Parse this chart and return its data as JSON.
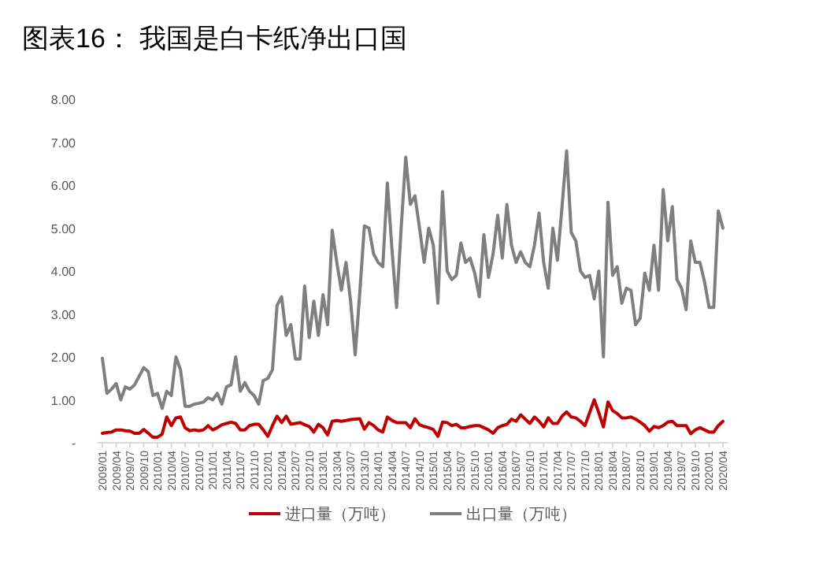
{
  "chart_data": {
    "type": "line",
    "title": "图表16：   我国是白卡纸净出口国",
    "categories": [
      "2009/01",
      null,
      null,
      "2009/04",
      null,
      null,
      "2009/07",
      null,
      null,
      "2009/10",
      null,
      null,
      "2010/01",
      null,
      null,
      "2010/04",
      null,
      null,
      "2010/07",
      null,
      null,
      "2010/10",
      null,
      null,
      "2011/01",
      null,
      null,
      "2011/04",
      null,
      null,
      "2011/07",
      null,
      null,
      "2011/10",
      null,
      null,
      "2012/01",
      null,
      null,
      "2012/04",
      null,
      null,
      "2012/07",
      null,
      null,
      "2012/10",
      null,
      null,
      "2013/01",
      null,
      null,
      "2013/04",
      null,
      null,
      "2013/07",
      null,
      null,
      "2013/10",
      null,
      null,
      "2014/01",
      null,
      null,
      "2014/04",
      null,
      null,
      "2014/07",
      null,
      null,
      "2014/10",
      null,
      null,
      "2015/01",
      null,
      null,
      "2015/04",
      null,
      null,
      "2015/07",
      null,
      null,
      "2015/10",
      null,
      null,
      "2016/01",
      null,
      null,
      "2016/04",
      null,
      null,
      "2016/07",
      null,
      null,
      "2016/10",
      null,
      null,
      "2017/01",
      null,
      null,
      "2017/04",
      null,
      null,
      "2017/07",
      null,
      null,
      "2017/10",
      null,
      null,
      "2018/01",
      null,
      null,
      "2018/04",
      null,
      null,
      "2018/07",
      null,
      null,
      "2018/10",
      null,
      null,
      "2019/01",
      null,
      null,
      "2019/04",
      null,
      null,
      "2019/07",
      null,
      null,
      "2019/10",
      null,
      null,
      "2020/01",
      null,
      null,
      "2020/04"
    ],
    "series": [
      {
        "name": "进口量（万吨）",
        "color": "#c00000",
        "values": [
          0.22,
          0.24,
          0.25,
          0.3,
          0.3,
          0.28,
          0.27,
          0.22,
          0.22,
          0.31,
          0.22,
          0.13,
          0.13,
          0.2,
          0.6,
          0.4,
          0.58,
          0.6,
          0.35,
          0.28,
          0.3,
          0.28,
          0.3,
          0.4,
          0.3,
          0.35,
          0.42,
          0.45,
          0.48,
          0.45,
          0.3,
          0.3,
          0.4,
          0.43,
          0.43,
          0.3,
          0.15,
          0.4,
          0.62,
          0.47,
          0.62,
          0.43,
          0.45,
          0.47,
          0.42,
          0.38,
          0.25,
          0.43,
          0.35,
          0.18,
          0.5,
          0.52,
          0.5,
          0.52,
          0.54,
          0.55,
          0.56,
          0.32,
          0.47,
          0.4,
          0.3,
          0.25,
          0.6,
          0.52,
          0.47,
          0.47,
          0.47,
          0.35,
          0.56,
          0.42,
          0.38,
          0.35,
          0.31,
          0.15,
          0.48,
          0.47,
          0.4,
          0.43,
          0.35,
          0.35,
          0.38,
          0.4,
          0.4,
          0.35,
          0.3,
          0.22,
          0.35,
          0.4,
          0.43,
          0.55,
          0.5,
          0.65,
          0.55,
          0.45,
          0.6,
          0.5,
          0.37,
          0.58,
          0.45,
          0.45,
          0.62,
          0.72,
          0.6,
          0.58,
          0.5,
          0.4,
          0.7,
          1.0,
          0.7,
          0.37,
          0.95,
          0.75,
          0.68,
          0.58,
          0.58,
          0.6,
          0.55,
          0.48,
          0.4,
          0.27,
          0.38,
          0.35,
          0.4,
          0.48,
          0.5,
          0.4,
          0.4,
          0.4,
          0.21,
          0.3,
          0.35,
          0.3,
          0.25,
          0.25,
          0.4,
          0.5
        ]
      },
      {
        "name": "出口量（万吨）",
        "color": "#7f7f7f",
        "values": [
          1.97,
          1.15,
          1.25,
          1.38,
          1.0,
          1.3,
          1.25,
          1.35,
          1.55,
          1.75,
          1.65,
          1.1,
          1.15,
          0.8,
          1.2,
          1.1,
          2.0,
          1.7,
          0.85,
          0.85,
          0.9,
          0.92,
          0.95,
          1.05,
          1.0,
          1.15,
          0.9,
          1.3,
          1.35,
          2.0,
          1.2,
          1.4,
          1.2,
          1.1,
          0.9,
          1.45,
          1.5,
          1.7,
          3.2,
          3.4,
          2.5,
          2.75,
          1.95,
          1.95,
          3.65,
          2.45,
          3.3,
          2.5,
          3.45,
          2.75,
          4.95,
          4.2,
          3.55,
          4.2,
          3.3,
          2.05,
          3.5,
          5.05,
          5.0,
          4.4,
          4.2,
          4.1,
          6.05,
          4.5,
          3.15,
          5.0,
          6.65,
          5.55,
          5.75,
          5.0,
          4.2,
          5.0,
          4.6,
          3.25,
          5.85,
          4.0,
          3.8,
          3.9,
          4.65,
          4.2,
          4.3,
          3.95,
          3.4,
          4.85,
          3.85,
          4.4,
          5.3,
          4.3,
          5.55,
          4.6,
          4.2,
          4.45,
          4.2,
          4.1,
          4.6,
          5.35,
          4.2,
          3.6,
          5.0,
          4.25,
          5.5,
          6.8,
          4.9,
          4.7,
          4.0,
          3.85,
          3.9,
          3.35,
          4.0,
          2.0,
          5.6,
          3.9,
          4.1,
          3.25,
          3.6,
          3.55,
          2.75,
          2.9,
          3.95,
          3.55,
          4.6,
          3.55,
          5.9,
          4.7,
          5.5,
          3.8,
          3.6,
          3.1,
          4.7,
          4.2,
          4.2,
          3.75,
          3.15,
          3.15,
          5.4,
          5.0
        ]
      }
    ],
    "ylim": [
      0,
      8
    ],
    "yticks": [
      {
        "value": 0,
        "label": "-"
      },
      {
        "value": 1,
        "label": "1.00"
      },
      {
        "value": 2,
        "label": "2.00"
      },
      {
        "value": 3,
        "label": "3.00"
      },
      {
        "value": 4,
        "label": "4.00"
      },
      {
        "value": 5,
        "label": "5.00"
      },
      {
        "value": 6,
        "label": "6.00"
      },
      {
        "value": 7,
        "label": "7.00"
      },
      {
        "value": 8,
        "label": "8.00"
      }
    ],
    "legend": "bottom"
  }
}
